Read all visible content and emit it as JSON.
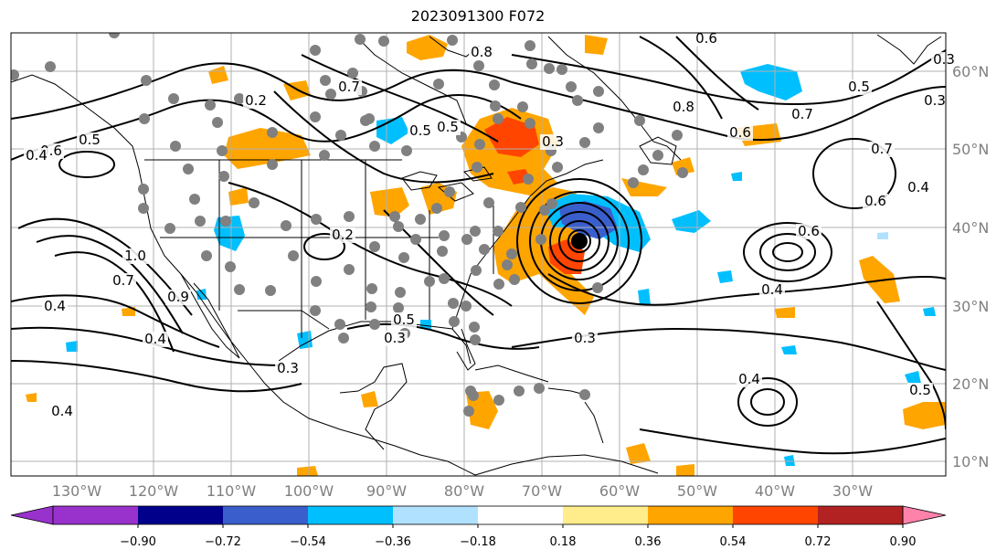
{
  "title": "2023091300 F072",
  "lon_labels": [
    "130°W",
    "120°W",
    "110°W",
    "100°W",
    "90°W",
    "80°W",
    "70°W",
    "60°W",
    "50°W",
    "40°W",
    "30°W"
  ],
  "lat_labels": [
    "60°N",
    "50°N",
    "40°N",
    "30°N",
    "20°N",
    "10°N"
  ],
  "colorbar": {
    "colors": [
      "#9932cc",
      "#00008b",
      "#3a5fcd",
      "#00bfff",
      "#b0e2ff",
      "#ffffff",
      "#ffec8b",
      "#ffa500",
      "#ff4500",
      "#b22222",
      "#ff82ab"
    ],
    "tick_labels": [
      "−0.90",
      "−0.72",
      "−0.54",
      "−0.36",
      "−0.18",
      "0.18",
      "0.36",
      "0.54",
      "0.72",
      "0.90"
    ],
    "extend": "both"
  },
  "contour_labels": [
    "0.6",
    "0.5",
    "0.7",
    "0.5",
    "0.8",
    "0.8",
    "0.6",
    "0.5",
    "0.7",
    "0.6",
    "0.7",
    "0.4",
    "0.6",
    "0.2",
    "0.2",
    "0.3",
    "0.3",
    "0.5",
    "0.6",
    "0.4",
    "1.0",
    "0.7",
    "0.9",
    "0.4",
    "0.3",
    "0.3",
    "0.4",
    "0.4",
    "0.5",
    "0.4",
    "0.4",
    "0.3",
    "0.5",
    "0.3"
  ],
  "colors": {
    "gridline": "#b0b0b0",
    "land_outline": "#000000",
    "dots": "#808080",
    "center": "#000000"
  }
}
